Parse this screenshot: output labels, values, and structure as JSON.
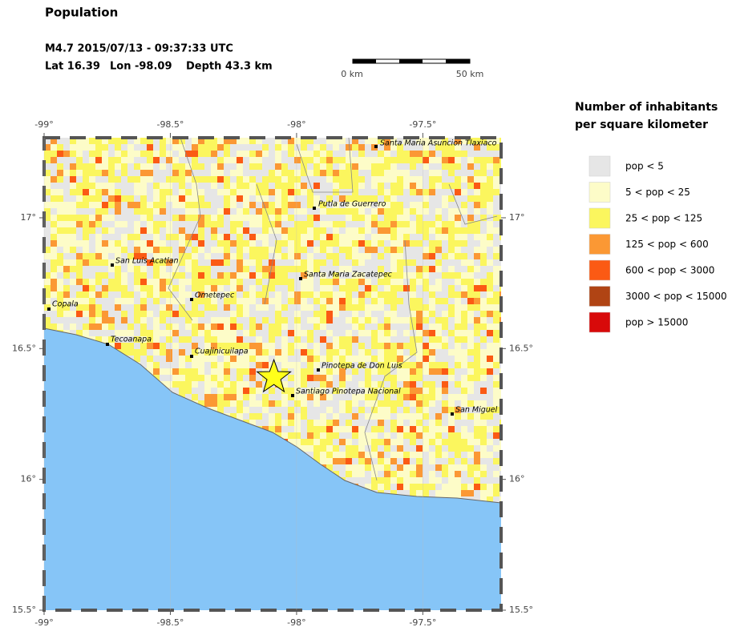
{
  "title": "Population",
  "event": {
    "line": "M4.7  2015/07/13 - 09:37:33 UTC",
    "lat": {
      "value": 16.39,
      "label": "Lat 16.39"
    },
    "lon": {
      "value": -98.09,
      "label": "Lon -98.09"
    },
    "depth": "Depth  43.3 km"
  },
  "scale_bar": {
    "start": "0 km",
    "end": "50 km"
  },
  "map": {
    "xlim": [
      -99,
      -97.19
    ],
    "ylim": [
      15.5,
      17.306
    ],
    "xticks": [
      {
        "value": -99,
        "label": "-99°"
      },
      {
        "value": -98.5,
        "label": "-98.5°"
      },
      {
        "value": -98,
        "label": "-98°"
      },
      {
        "value": -97.5,
        "label": "-97.5°"
      }
    ],
    "yticks": [
      {
        "value": 15.5,
        "label": "15.5°"
      },
      {
        "value": 16,
        "label": "16°"
      },
      {
        "value": 16.5,
        "label": "16.5°"
      },
      {
        "value": 17,
        "label": "17°"
      }
    ]
  },
  "cities": [
    "Santa Maria Asuncion Tlaxiaco",
    "Putla de Guerrero",
    "San Luis Acatlan",
    "Santa Maria Zacatepec",
    "Ometepec",
    "Copala",
    "Tecoanapa",
    "Cuajinicuilapa",
    "Pinotepa de Don Luis",
    "Santiago Pinotepa Nacional",
    "San Miguel"
  ],
  "legend": {
    "title": [
      "Number of inhabitants",
      "per square kilometer"
    ],
    "items": [
      {
        "label": "pop < 5",
        "color": "#e6e6e6"
      },
      {
        "label": "5 < pop < 25",
        "color": "#fdfcc8"
      },
      {
        "label": "25 < pop < 125",
        "color": "#fbf65e"
      },
      {
        "label": "125 < pop < 600",
        "color": "#fb9834"
      },
      {
        "label": "600 < pop < 3000",
        "color": "#fb5a14"
      },
      {
        "label": "3000 < pop < 15000",
        "color": "#b04414"
      },
      {
        "label": "pop > 15000",
        "color": "#d80a0a"
      }
    ]
  }
}
